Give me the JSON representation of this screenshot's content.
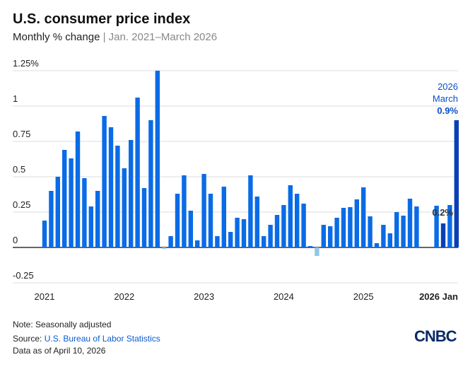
{
  "header": {
    "title": "U.S. consumer price index",
    "subtitle_main": "Monthly % change",
    "subtitle_sep": " | ",
    "subtitle_range": "Jan. 2021–March 2026"
  },
  "chart_data": {
    "type": "bar",
    "title": "U.S. consumer price index",
    "subtitle": "Monthly % change | Jan. 2021–March 2026",
    "ylim": [
      -0.25,
      1.25
    ],
    "yticks": [
      "1.25%",
      "1",
      "0.75",
      "0.5",
      "0.25",
      "0",
      "-0.25"
    ],
    "ytick_values": [
      1.25,
      1,
      0.75,
      0.5,
      0.25,
      0,
      -0.25
    ],
    "xticks": [
      "2021",
      "2022",
      "2023",
      "2024",
      "2025",
      "2026 Jan"
    ],
    "grid": true,
    "colors": {
      "default": "#0a6be6",
      "negative": "#92c6ea",
      "highlight": "#0a3fb5",
      "annotation": "#0a4fc8"
    },
    "start": "2021-01",
    "values": [
      0.19,
      0.4,
      0.5,
      0.69,
      0.63,
      0.82,
      0.49,
      0.29,
      0.4,
      0.93,
      0.85,
      0.72,
      0.56,
      0.76,
      1.06,
      0.42,
      0.9,
      1.25,
      -0.01,
      0.08,
      0.38,
      0.51,
      0.26,
      0.05,
      0.52,
      0.38,
      0.08,
      0.43,
      0.11,
      0.21,
      0.2,
      0.51,
      0.36,
      0.08,
      0.16,
      0.23,
      0.3,
      0.44,
      0.38,
      0.31,
      0.01,
      -0.06,
      0.16,
      0.15,
      0.21,
      0.28,
      0.285,
      0.34,
      0.425,
      0.22,
      0.03,
      0.16,
      0.1,
      0.25,
      0.225,
      0.345,
      0.29,
      null,
      null,
      0.295,
      0.17,
      0.3,
      0.9
    ],
    "highlighted": [
      "2026-01",
      "2026-03"
    ],
    "annotations": {
      "latest_year": "2026",
      "latest_month": "March",
      "latest_value": "0.9%",
      "jan_value": "0.2%"
    }
  },
  "footer": {
    "note": "Note: Seasonally adjusted",
    "source_prefix": "Source: ",
    "source_link": "U.S. Bureau of Labor Statistics",
    "data_as_of": "Data as of April 10, 2026",
    "logo": "CNBC"
  }
}
